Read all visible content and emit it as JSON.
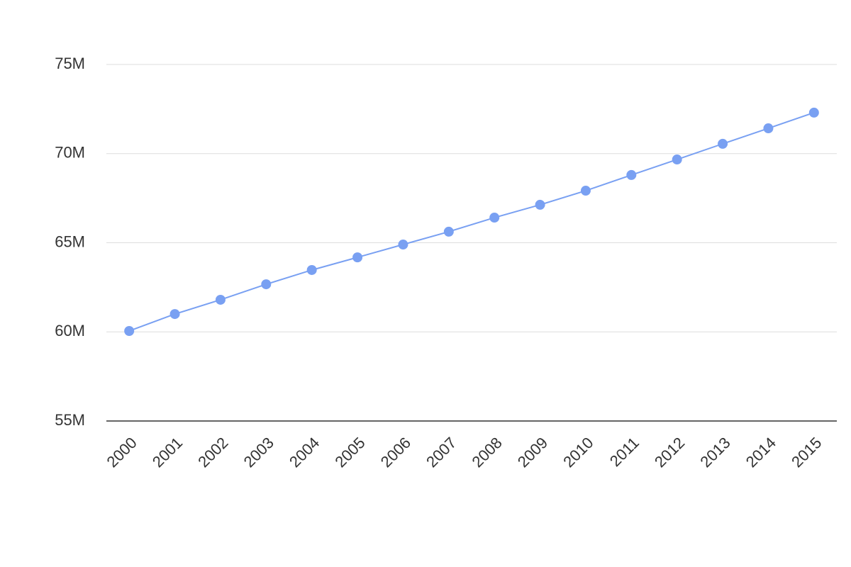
{
  "chart_data": {
    "type": "line",
    "categories": [
      "2000",
      "2001",
      "2002",
      "2003",
      "2004",
      "2005",
      "2006",
      "2007",
      "2008",
      "2009",
      "2010",
      "2011",
      "2012",
      "2013",
      "2014",
      "2015"
    ],
    "series": [
      {
        "color": "#79a0f2",
        "values": [
          60050000,
          61000000,
          61800000,
          62670000,
          63470000,
          64180000,
          64900000,
          65620000,
          66410000,
          67130000,
          67920000,
          68800000,
          69670000,
          70550000,
          71420000,
          72300000
        ]
      }
    ],
    "ylim": [
      55000000,
      75000000
    ],
    "yticks": [
      {
        "value": 55000000,
        "label": "55M"
      },
      {
        "value": 60000000,
        "label": "60M"
      },
      {
        "value": 65000000,
        "label": "65M"
      },
      {
        "value": 70000000,
        "label": "70M"
      },
      {
        "value": 75000000,
        "label": "75M"
      }
    ],
    "grid": true
  }
}
